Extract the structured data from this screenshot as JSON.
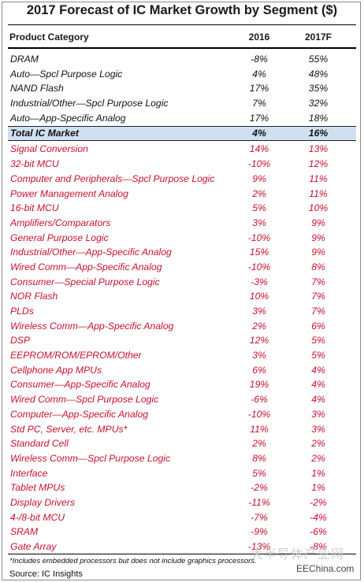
{
  "title": "2017 Forecast of IC Market Growth by Segment ($)",
  "columns": {
    "category": "Product Category",
    "y2016": "2016",
    "y2017": "2017F"
  },
  "rows": [
    {
      "category": "DRAM",
      "y2016": "-8%",
      "y2017": "55%",
      "style": "black"
    },
    {
      "category": "Auto—Spcl Purpose Logic",
      "y2016": "4%",
      "y2017": "48%",
      "style": "black"
    },
    {
      "category": "NAND Flash",
      "y2016": "17%",
      "y2017": "35%",
      "style": "black"
    },
    {
      "category": "Industrial/Other—Spcl Purpose Logic",
      "y2016": "7%",
      "y2017": "32%",
      "style": "black"
    },
    {
      "category": "Auto—App-Specific Analog",
      "y2016": "17%",
      "y2017": "18%",
      "style": "black"
    },
    {
      "category": "Total IC Market",
      "y2016": "4%",
      "y2017": "16%",
      "style": "total"
    },
    {
      "category": "Signal Conversion",
      "y2016": "14%",
      "y2017": "13%",
      "style": "red"
    },
    {
      "category": "32-bit MCU",
      "y2016": "-10%",
      "y2017": "12%",
      "style": "red"
    },
    {
      "category": "Computer and Peripherals—Spcl Purpose Logic",
      "y2016": "9%",
      "y2017": "11%",
      "style": "red"
    },
    {
      "category": "Power Management Analog",
      "y2016": "2%",
      "y2017": "11%",
      "style": "red"
    },
    {
      "category": "16-bit MCU",
      "y2016": "5%",
      "y2017": "10%",
      "style": "red"
    },
    {
      "category": "Amplifiers/Comparators",
      "y2016": "3%",
      "y2017": "9%",
      "style": "red"
    },
    {
      "category": "General Purpose Logic",
      "y2016": "-10%",
      "y2017": "9%",
      "style": "red"
    },
    {
      "category": "Industrial/Other—App-Specific Analog",
      "y2016": "15%",
      "y2017": "9%",
      "style": "red"
    },
    {
      "category": "Wired Comm—App-Specific Analog",
      "y2016": "-10%",
      "y2017": "8%",
      "style": "red"
    },
    {
      "category": "Consumer—Special Purpose Logic",
      "y2016": "-3%",
      "y2017": "7%",
      "style": "red"
    },
    {
      "category": "NOR Flash",
      "y2016": "10%",
      "y2017": "7%",
      "style": "red"
    },
    {
      "category": "PLDs",
      "y2016": "3%",
      "y2017": "7%",
      "style": "red"
    },
    {
      "category": "Wireless Comm—App-Specific Analog",
      "y2016": "2%",
      "y2017": "6%",
      "style": "red"
    },
    {
      "category": "DSP",
      "y2016": "12%",
      "y2017": "5%",
      "style": "red"
    },
    {
      "category": "EEPROM/ROM/EPROM/Other",
      "y2016": "3%",
      "y2017": "5%",
      "style": "red"
    },
    {
      "category": "Cellphone App MPUs",
      "y2016": "6%",
      "y2017": "4%",
      "style": "red"
    },
    {
      "category": "Consumer—App-Specific Analog",
      "y2016": "19%",
      "y2017": "4%",
      "style": "red"
    },
    {
      "category": "Wired Comm—Spcl Purpose Logic",
      "y2016": "-6%",
      "y2017": "4%",
      "style": "red"
    },
    {
      "category": "Computer—App-Specific Analog",
      "y2016": "-10%",
      "y2017": "3%",
      "style": "red"
    },
    {
      "category": "Std PC, Server, etc. MPUs*",
      "y2016": "11%",
      "y2017": "3%",
      "style": "red"
    },
    {
      "category": "Standard Cell",
      "y2016": "2%",
      "y2017": "2%",
      "style": "red"
    },
    {
      "category": "Wireless Comm—Spcl Purpose Logic",
      "y2016": "8%",
      "y2017": "2%",
      "style": "red"
    },
    {
      "category": "Interface",
      "y2016": "5%",
      "y2017": "1%",
      "style": "red"
    },
    {
      "category": "Tablet MPUs",
      "y2016": "-2%",
      "y2017": "1%",
      "style": "red"
    },
    {
      "category": "Display Drivers",
      "y2016": "-11%",
      "y2017": "-2%",
      "style": "red"
    },
    {
      "category": "4-/8-bit MCU",
      "y2016": "-7%",
      "y2017": "-4%",
      "style": "red"
    },
    {
      "category": "SRAM",
      "y2016": "-9%",
      "y2017": "-6%",
      "style": "red"
    },
    {
      "category": "Gate Array",
      "y2016": "-13%",
      "y2017": "-8%",
      "style": "red"
    }
  ],
  "footnote": "*Includes embedded processors but does not include graphics processors.",
  "source": "Source:  IC Insights",
  "watermark_cn": "大半导体产业网",
  "watermark_site": "EEChina.com",
  "colors": {
    "red_text": "#c8102e",
    "total_band": "#cfe0f1"
  }
}
